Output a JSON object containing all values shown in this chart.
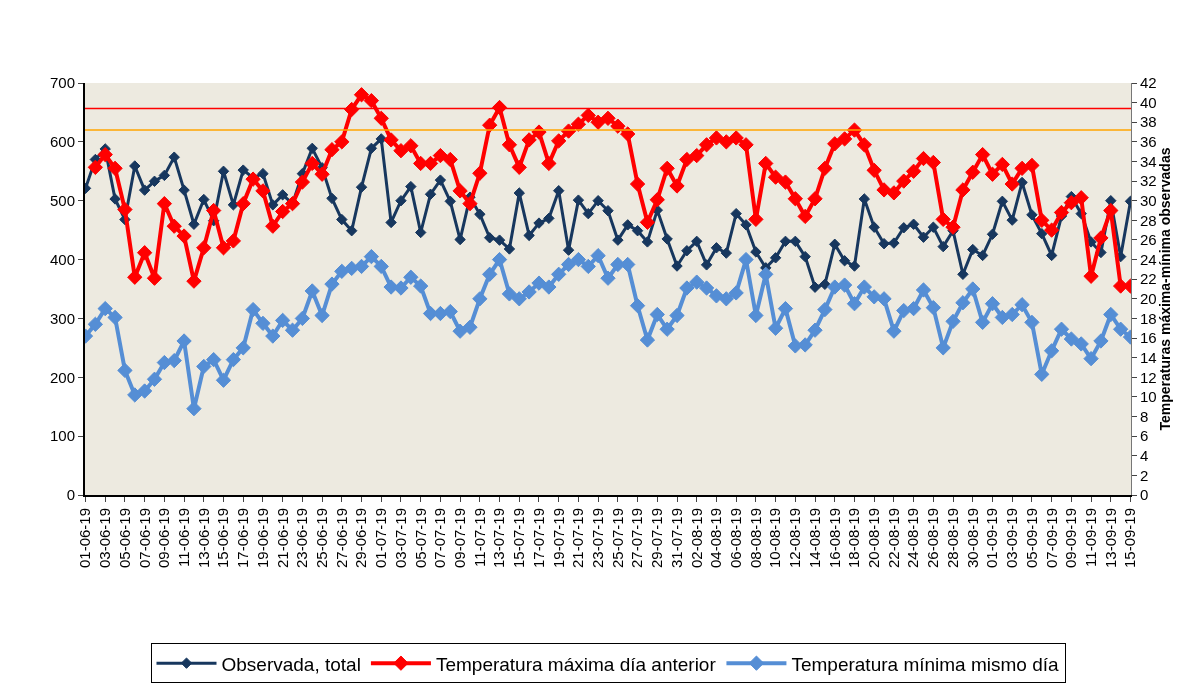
{
  "chart_data": {
    "type": "line",
    "categories": [
      "01-06-19",
      null,
      "03-06-19",
      null,
      "05-06-19",
      null,
      "07-06-19",
      null,
      "09-06-19",
      null,
      "11-06-19",
      null,
      "13-06-19",
      null,
      "15-06-19",
      null,
      "17-06-19",
      null,
      "19-06-19",
      null,
      "21-06-19",
      null,
      "23-06-19",
      null,
      "25-06-19",
      null,
      "27-06-19",
      null,
      "29-06-19",
      null,
      "01-07-19",
      null,
      "03-07-19",
      null,
      "05-07-19",
      null,
      "07-07-19",
      null,
      "09-07-19",
      null,
      "11-07-19",
      null,
      "13-07-19",
      null,
      "15-07-19",
      null,
      "17-07-19",
      null,
      "19-07-19",
      null,
      "21-07-19",
      null,
      "23-07-19",
      null,
      "25-07-19",
      null,
      "27-07-19",
      null,
      "29-07-19",
      null,
      "31-07-19",
      null,
      "02-08-19",
      null,
      "04-08-19",
      null,
      "06-08-19",
      null,
      "08-08-19",
      null,
      "10-08-19",
      null,
      "12-08-19",
      null,
      "14-08-19",
      null,
      "16-08-19",
      null,
      "18-08-19",
      null,
      "20-08-19",
      null,
      "22-08-19",
      null,
      "24-08-19",
      null,
      "26-08-19",
      null,
      "28-08-19",
      null,
      "30-08-19",
      null,
      "01-09-19",
      null,
      "03-09-19",
      null,
      "05-09-19",
      null,
      "07-09-19",
      null,
      "09-09-19",
      null,
      "11-09-19",
      null,
      "13-09-19",
      null,
      "15-09-19"
    ],
    "series": [
      {
        "name": "Observada, total",
        "color": "#17375e",
        "values": [
          521,
          570,
          588,
          503,
          468,
          559,
          518,
          533,
          543,
          574,
          518,
          460,
          502,
          466,
          550,
          493,
          552,
          539,
          546,
          493,
          510,
          495,
          546,
          589,
          556,
          504,
          468,
          449,
          523,
          589,
          605,
          463,
          500,
          524,
          446,
          511,
          535,
          499,
          434,
          506,
          477,
          437,
          433,
          418,
          513,
          441,
          462,
          470,
          517,
          416,
          501,
          478,
          500,
          483,
          433,
          459,
          449,
          430,
          484,
          435,
          389,
          415,
          431,
          391,
          420,
          411,
          478,
          459,
          413,
          386,
          403,
          431,
          431,
          405,
          353,
          358,
          426,
          398,
          389,
          503,
          455,
          427,
          428,
          454,
          460,
          438,
          455,
          422,
          449,
          375,
          417,
          407,
          443,
          499,
          467,
          531,
          476,
          444,
          407,
          474,
          507,
          478,
          430,
          412,
          500,
          405,
          499
        ]
      },
      {
        "name": "Temperatura máxima día anterior",
        "color": "#ff0000",
        "axis": "y2",
        "values": [
          null,
          33.4,
          34.7,
          33.3,
          29.1,
          22.2,
          24.7,
          22.1,
          29.7,
          27.4,
          26.4,
          21.8,
          25.2,
          29.0,
          25.2,
          25.9,
          29.7,
          32.2,
          31.0,
          27.4,
          28.9,
          29.7,
          31.9,
          33.8,
          32.7,
          35.2,
          36.0,
          39.3,
          40.8,
          40.2,
          38.4,
          36.2,
          35.1,
          35.6,
          33.8,
          33.8,
          34.6,
          34.2,
          31.0,
          29.7,
          32.8,
          37.7,
          39.5,
          35.7,
          33.4,
          36.2,
          37.0,
          33.8,
          36.1,
          37.1,
          37.8,
          38.7,
          38.0,
          38.4,
          37.6,
          36.8,
          31.7,
          27.8,
          30.1,
          33.3,
          31.5,
          34.2,
          34.6,
          35.7,
          36.4,
          36.0,
          36.4,
          35.7,
          28.1,
          33.8,
          32.4,
          31.9,
          30.2,
          28.4,
          30.2,
          33.3,
          35.8,
          36.3,
          37.2,
          35.7,
          33.1,
          31.1,
          30.8,
          32.0,
          33.0,
          34.3,
          33.9,
          28.1,
          27.3,
          31.1,
          32.9,
          34.7,
          32.7,
          33.7,
          31.7,
          33.3,
          33.6,
          28.0,
          27.0,
          28.8,
          29.8,
          30.3,
          22.3,
          26.2,
          29.0,
          21.3,
          21.3
        ]
      },
      {
        "name": "Temperatura mínima mismo día",
        "color": "#558ed5",
        "axis": "y2",
        "values": [
          16.2,
          17.4,
          19.0,
          18.1,
          12.7,
          10.2,
          10.6,
          11.8,
          13.5,
          13.7,
          15.7,
          8.8,
          13.1,
          13.8,
          11.7,
          13.8,
          15.0,
          18.9,
          17.5,
          16.2,
          17.8,
          16.8,
          18.0,
          20.8,
          18.3,
          21.5,
          22.8,
          23.1,
          23.3,
          24.3,
          23.3,
          21.2,
          21.1,
          22.2,
          21.3,
          18.5,
          18.5,
          18.7,
          16.7,
          17.1,
          20.0,
          22.5,
          24.0,
          20.5,
          20.0,
          20.7,
          21.6,
          21.2,
          22.5,
          23.5,
          24.0,
          23.3,
          24.4,
          22.1,
          23.5,
          23.5,
          19.3,
          15.8,
          18.4,
          16.9,
          18.3,
          21.1,
          21.7,
          21.1,
          20.3,
          20.0,
          20.6,
          24.0,
          18.3,
          22.5,
          17.0,
          19.0,
          15.2,
          15.3,
          16.8,
          18.9,
          21.2,
          21.4,
          19.5,
          21.2,
          20.2,
          20.0,
          16.7,
          18.8,
          19.0,
          20.9,
          19.1,
          15.0,
          17.7,
          19.6,
          21.0,
          17.6,
          19.5,
          18.1,
          18.4,
          19.4,
          17.6,
          12.3,
          14.7,
          16.9,
          15.9,
          15.4,
          13.9,
          15.7,
          18.4,
          16.9,
          16.1
        ]
      }
    ],
    "y2label": "Temperaturas máxima-mínima observadas",
    "ylim": [
      0,
      700
    ],
    "yticks": [
      0,
      100,
      200,
      300,
      400,
      500,
      600,
      700
    ],
    "y2lim": [
      0,
      42
    ],
    "y2ticks": [
      0,
      2,
      4,
      6,
      8,
      10,
      12,
      14,
      16,
      18,
      20,
      22,
      24,
      26,
      28,
      30,
      32,
      34,
      36,
      38,
      40,
      42
    ],
    "ref_lines": [
      {
        "axis": "y2",
        "value": 39.4,
        "color": "#ff0000"
      },
      {
        "axis": "y2",
        "value": 37.2,
        "color": "#ffa500"
      }
    ],
    "marker": "diamond",
    "line_style": "solid",
    "grid": false,
    "legend": "bottom"
  }
}
